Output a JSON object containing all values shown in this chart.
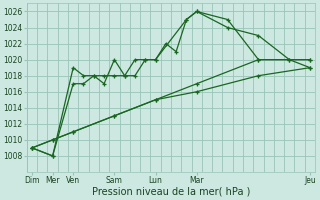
{
  "background_color": "#cce8e0",
  "grid_color": "#99c4b8",
  "line_color": "#1a6622",
  "xlabel": "Pression niveau de la mer( hPa )",
  "ylim": [
    1006,
    1027
  ],
  "yticks": [
    1008,
    1010,
    1012,
    1014,
    1016,
    1018,
    1020,
    1022,
    1024,
    1026
  ],
  "xlim": [
    0,
    28
  ],
  "xtick_positions": [
    0.5,
    2.5,
    4.5,
    8.5,
    12.5,
    16.5,
    27.5
  ],
  "xtick_labels": [
    "Dim",
    "Mer",
    "Ven",
    "Sam",
    "Lun",
    "Mar",
    "Jeu"
  ],
  "lines": [
    {
      "x": [
        0.5,
        2.5,
        4.5,
        5.5,
        6.5,
        7.5,
        8.5,
        9.5,
        10.5,
        11.5,
        12.5,
        13.5,
        14.5,
        15.5,
        16.5,
        19.5,
        22.5,
        25.5,
        27.5
      ],
      "y": [
        1009,
        1008,
        1017,
        1017,
        1018,
        1017,
        1020,
        1018,
        1018,
        1020,
        1020,
        1022,
        1021,
        1025,
        1026,
        1024,
        1023,
        1020,
        1019
      ]
    },
    {
      "x": [
        0.5,
        2.5,
        4.5,
        5.5,
        6.5,
        7.5,
        8.5,
        9.5,
        10.5,
        11.5,
        12.5,
        15.5,
        16.5,
        19.5,
        22.5,
        25.5,
        27.5
      ],
      "y": [
        1009,
        1008,
        1019,
        1018,
        1018,
        1018,
        1018,
        1018,
        1020,
        1020,
        1020,
        1025,
        1026,
        1025,
        1020,
        1020,
        1020
      ]
    },
    {
      "x": [
        0.5,
        2.5,
        4.5,
        8.5,
        12.5,
        16.5,
        22.5,
        27.5
      ],
      "y": [
        1009,
        1010,
        1011,
        1013,
        1015,
        1016,
        1018,
        1019
      ]
    },
    {
      "x": [
        0.5,
        2.5,
        4.5,
        8.5,
        12.5,
        16.5,
        22.5,
        27.5
      ],
      "y": [
        1009,
        1010,
        1011,
        1013,
        1015,
        1017,
        1020,
        1020
      ]
    }
  ]
}
